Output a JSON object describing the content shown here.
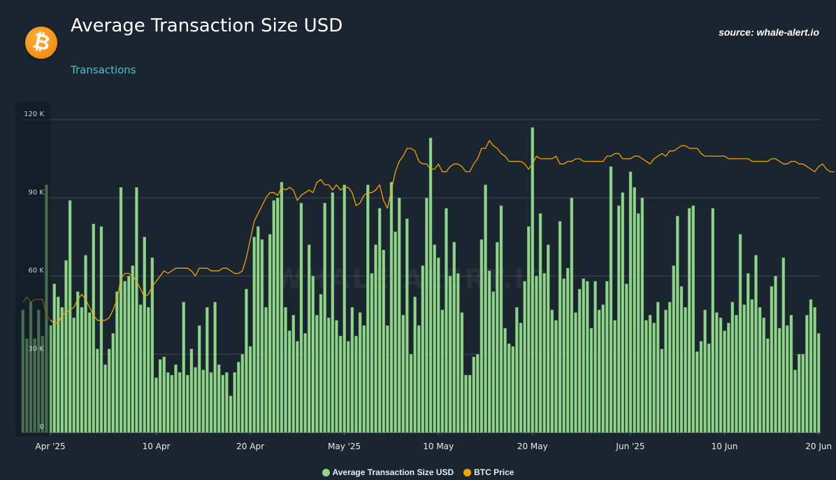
{
  "header": {
    "title": "Average Transaction Size USD",
    "subtitle_link": "Transactions",
    "source": "source: whale-alert.io",
    "logo_glyph": "₿",
    "logo_icon": "bitcoin-logo-icon"
  },
  "colors": {
    "background": "#1a2530",
    "bar": "#8fd48a",
    "bar_edge": "#5a9a57",
    "line": "#f0a500",
    "grid": "#3a4a58",
    "accent": "#4fc3c7"
  },
  "chart_data": {
    "type": "bar",
    "title": "Average Transaction Size USD",
    "xlabel": "",
    "ylabel": "",
    "ylim": [
      0,
      120000
    ],
    "yticks": [
      0,
      30000,
      60000,
      90000,
      120000
    ],
    "ytick_labels": [
      "0",
      "30 K",
      "60 K",
      "90 K",
      "120 K"
    ],
    "x_tick_labels": [
      {
        "label": "Apr '25",
        "index": 7
      },
      {
        "label": "10 Apr",
        "index": 34
      },
      {
        "label": "20 Apr",
        "index": 58
      },
      {
        "label": "May '25",
        "index": 82
      },
      {
        "label": "10 May",
        "index": 106
      },
      {
        "label": "20 May",
        "index": 130
      },
      {
        "label": "Jun '25",
        "index": 155
      },
      {
        "label": "10 Jun",
        "index": 179
      },
      {
        "label": "20 Jun",
        "index": 203
      }
    ],
    "legend_placement": "bottom-center",
    "grid": true,
    "series": [
      {
        "name": "Average Transaction Size USD",
        "type": "bar",
        "values": [
          47000,
          36000,
          50000,
          36000,
          47000,
          37000,
          95000,
          41000,
          57000,
          52000,
          48000,
          66000,
          89000,
          44000,
          54000,
          48000,
          68000,
          46000,
          80000,
          32000,
          79000,
          26000,
          32000,
          38000,
          54000,
          94000,
          58000,
          60000,
          64000,
          94000,
          49000,
          75000,
          48000,
          67000,
          21000,
          28000,
          29000,
          23000,
          22000,
          26000,
          23000,
          50000,
          22000,
          32000,
          25000,
          41000,
          24000,
          48000,
          23000,
          50000,
          26000,
          22000,
          23000,
          14000,
          23000,
          27000,
          30000,
          55000,
          33000,
          75000,
          79000,
          74000,
          48000,
          76000,
          89000,
          90000,
          96000,
          48000,
          39000,
          45000,
          35000,
          88000,
          38000,
          72000,
          60000,
          45000,
          53000,
          88000,
          44000,
          92000,
          43000,
          37000,
          95000,
          35000,
          48000,
          37000,
          46000,
          41000,
          95000,
          61000,
          72000,
          86000,
          70000,
          41000,
          96000,
          77000,
          90000,
          45000,
          82000,
          30000,
          52000,
          41000,
          64000,
          90000,
          113000,
          72000,
          67000,
          47000,
          86000,
          60000,
          73000,
          61000,
          46000,
          22000,
          22000,
          29000,
          30000,
          74000,
          95000,
          62000,
          54000,
          73000,
          87000,
          40000,
          34000,
          33000,
          48000,
          42000,
          58000,
          79000,
          117000,
          60000,
          84000,
          61000,
          72000,
          47000,
          43000,
          81000,
          59000,
          63000,
          90000,
          46000,
          55000,
          59000,
          58000,
          40000,
          58000,
          47000,
          49000,
          58000,
          102000,
          43000,
          87000,
          92000,
          57000,
          100000,
          94000,
          84000,
          90000,
          43000,
          45000,
          42000,
          50000,
          32000,
          47000,
          50000,
          64000,
          83000,
          56000,
          48000,
          86000,
          87000,
          31000,
          35000,
          47000,
          34000,
          86000,
          46000,
          44000,
          39000,
          42000,
          50000,
          45000,
          76000,
          49000,
          61000,
          51000,
          68000,
          48000,
          44000,
          36000,
          56000,
          60000,
          40000,
          67000,
          41000,
          45000,
          24000,
          30000,
          30000,
          45000,
          51000,
          48000,
          38000
        ]
      },
      {
        "name": "BTC Price",
        "type": "line",
        "values": [
          50000,
          52000,
          50000,
          51000,
          51000,
          51000,
          45000,
          43000,
          42000,
          42000,
          45000,
          46000,
          47000,
          48000,
          51000,
          53000,
          51000,
          48000,
          45000,
          43000,
          43000,
          43000,
          44000,
          47000,
          51000,
          59000,
          61000,
          61000,
          60000,
          58000,
          55000,
          52000,
          53000,
          56000,
          58000,
          60000,
          62000,
          61000,
          62000,
          63000,
          63000,
          63000,
          63000,
          62000,
          60000,
          63000,
          63000,
          63000,
          62000,
          62000,
          62000,
          63000,
          63000,
          62000,
          61000,
          61000,
          62000,
          67000,
          74000,
          81000,
          84000,
          87000,
          90000,
          92000,
          92000,
          91000,
          94000,
          93000,
          94000,
          93000,
          89000,
          91000,
          92000,
          93000,
          92000,
          96000,
          97000,
          95000,
          95000,
          93000,
          95000,
          93000,
          94000,
          94000,
          92000,
          87000,
          88000,
          91000,
          92000,
          92000,
          93000,
          95000,
          89000,
          86000,
          93000,
          100000,
          104000,
          106000,
          109000,
          109000,
          108000,
          104000,
          103000,
          103000,
          101000,
          101000,
          103000,
          100000,
          100000,
          102000,
          103000,
          103000,
          102000,
          100000,
          100000,
          103000,
          105000,
          109000,
          109000,
          112000,
          110000,
          109000,
          107000,
          106000,
          104000,
          104000,
          104000,
          104000,
          103000,
          101000,
          103000,
          106000,
          105000,
          105000,
          105000,
          105000,
          106000,
          103000,
          103000,
          104000,
          104000,
          105000,
          105000,
          104000,
          104000,
          104000,
          104000,
          104000,
          104000,
          106000,
          106000,
          107000,
          107000,
          105000,
          105000,
          105000,
          106000,
          106000,
          105000,
          104000,
          103000,
          105000,
          106000,
          107000,
          106000,
          108000,
          108000,
          109000,
          110000,
          110000,
          109000,
          109000,
          109000,
          107000,
          106000,
          106000,
          106000,
          106000,
          106000,
          106000,
          105000,
          105000,
          105000,
          105000,
          105000,
          105000,
          104000,
          104000,
          104000,
          104000,
          104000,
          105000,
          105000,
          104000,
          103000,
          103000,
          104000,
          104000,
          103000,
          103000,
          102000,
          101000,
          100000,
          102000,
          103000,
          101000,
          100000,
          100000
        ]
      }
    ]
  },
  "legend": {
    "items": [
      {
        "label": "Average Transaction Size USD",
        "color": "#8fd48a"
      },
      {
        "label": "BTC Price",
        "color": "#f0a500"
      }
    ]
  },
  "watermark": "WHALE ALERT.IO"
}
